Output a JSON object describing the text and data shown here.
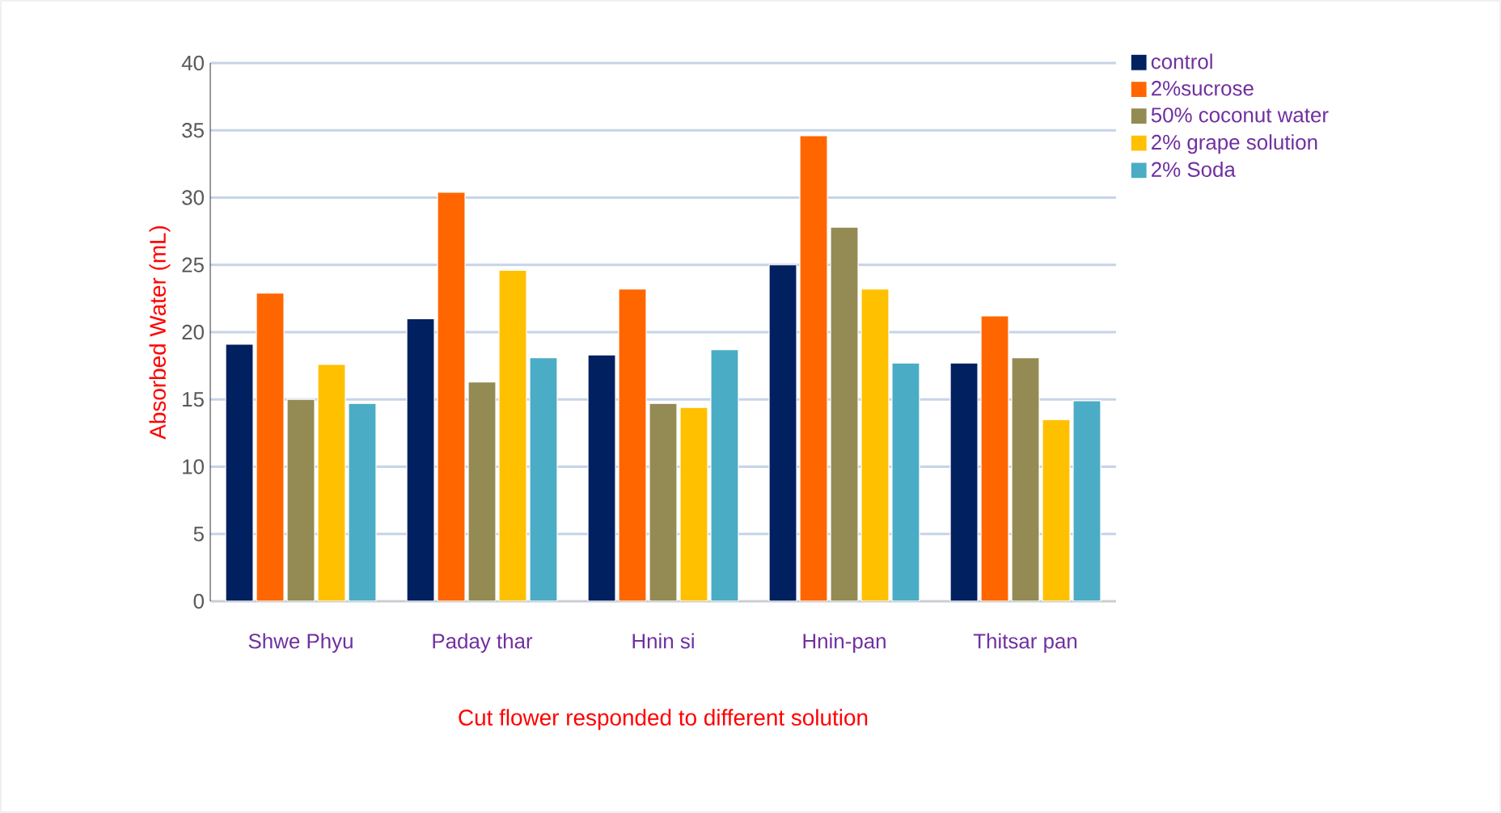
{
  "chart_data": {
    "type": "bar",
    "xlabel": "Cut flower responded to different solution",
    "ylabel": "Absorbed Water (mL)",
    "categories": [
      "Shwe Phyu",
      "Paday thar",
      "Hnin si",
      "Hnin-pan",
      "Thitsar pan"
    ],
    "series": [
      {
        "name": "control",
        "color": "#002060",
        "values": [
          19.1,
          21,
          18.3,
          25,
          17.7
        ]
      },
      {
        "name": "2%sucrose",
        "color": "#ff6600",
        "values": [
          22.9,
          30.4,
          23.2,
          34.6,
          21.2
        ]
      },
      {
        "name": "50% coconut water",
        "color": "#948a54",
        "values": [
          15,
          16.3,
          14.7,
          27.8,
          18.1
        ]
      },
      {
        "name": "2% grape solution",
        "color": "#ffc000",
        "values": [
          17.6,
          24.6,
          14.4,
          23.2,
          13.5
        ]
      },
      {
        "name": "2% Soda",
        "color": "#4bacc6",
        "values": [
          14.7,
          18.1,
          18.7,
          17.7,
          14.9
        ]
      }
    ],
    "ylim": [
      0,
      40
    ],
    "yticks": [
      0,
      5,
      10,
      15,
      20,
      25,
      30,
      35,
      40
    ],
    "grid": "y",
    "legend": "right"
  }
}
